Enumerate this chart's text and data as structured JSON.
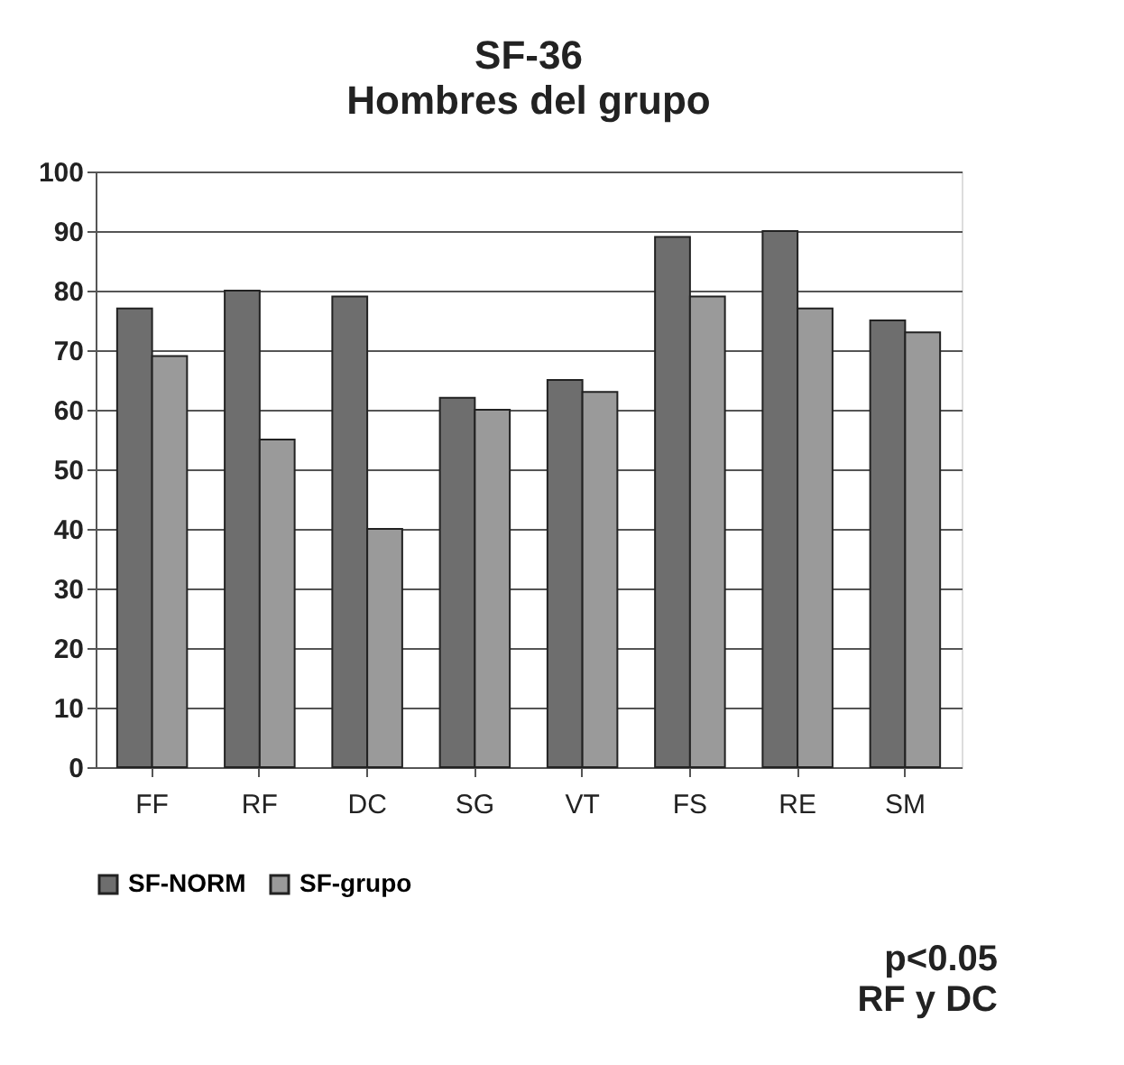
{
  "chart_data": {
    "type": "bar",
    "title": "SF-36",
    "subtitle": "Hombres del grupo",
    "categories": [
      "FF",
      "RF",
      "DC",
      "SG",
      "VT",
      "FS",
      "RE",
      "SM"
    ],
    "series": [
      {
        "name": "SF-NORM",
        "color": "#6e6e6e",
        "values": [
          77,
          80,
          79,
          62,
          65,
          89,
          90,
          75
        ]
      },
      {
        "name": "SF-grupo",
        "color": "#9a9a9a",
        "values": [
          69,
          55,
          40,
          60,
          63,
          79,
          77,
          73
        ]
      }
    ],
    "ylim": [
      0,
      100
    ],
    "yticks": [
      0,
      10,
      20,
      30,
      40,
      50,
      60,
      70,
      80,
      90,
      100
    ],
    "grid": "y",
    "legend": "bottom left",
    "annotations": [
      "p<0.05",
      "RF y DC"
    ]
  }
}
